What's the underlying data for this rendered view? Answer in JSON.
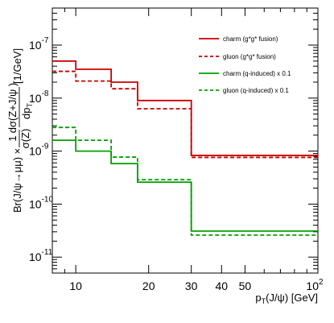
{
  "chart_data": {
    "type": "line",
    "step": true,
    "xscale": "log",
    "yscale": "log",
    "xlim": [
      8,
      100
    ],
    "ylim": [
      5e-12,
      5e-07
    ],
    "x_tick_labels": [
      "10",
      "20",
      "30",
      "40",
      "50",
      "10^2"
    ],
    "y_tick_labels": [
      "10^-7",
      "10^-8",
      "10^-9",
      "10^-10",
      "10^-11"
    ],
    "bin_edges": [
      8,
      10,
      14,
      18,
      30,
      100
    ],
    "series": [
      {
        "name": "charm (g*g* fusion)",
        "color": "#cc0000",
        "dashed": false,
        "values": [
          5e-08,
          3.5e-08,
          2e-08,
          9e-09,
          8.3e-10
        ]
      },
      {
        "name": "gluon (g*g* fusion)",
        "color": "#cc0000",
        "dashed": true,
        "values": [
          3.2e-08,
          2.1e-08,
          1.5e-08,
          6.3e-09,
          7.6e-10
        ]
      },
      {
        "name": "charm (q-induced) x 0.1",
        "color": "#00a000",
        "dashed": false,
        "values": [
          1.6e-09,
          1e-09,
          5.8e-10,
          2.6e-10,
          3.1e-11
        ]
      },
      {
        "name": "gluon (q-induced) x 0.1",
        "color": "#00a000",
        "dashed": true,
        "values": [
          2.8e-09,
          1.6e-09,
          7.7e-10,
          2.9e-10,
          2.6e-11
        ]
      }
    ],
    "xlabel": "p_T(J/ψ) [GeV]",
    "ylabel": "Br(J/ψ→μμ) × 1/σ(Z) dσ(Z+J/ψ)/dp_T [1/GeV]",
    "legend_position": "top-right",
    "grid": false
  }
}
